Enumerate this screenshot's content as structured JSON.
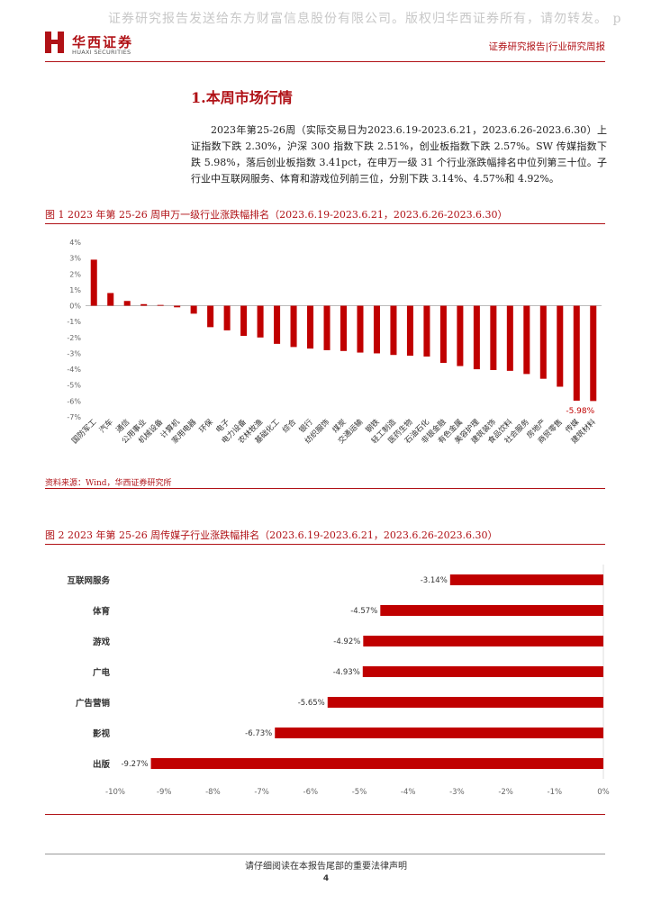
{
  "header": {
    "watermark": "证券研究报告发送给东方财富信息股份有限公司。版权归华西证券所有，请勿转发。 p",
    "logo_cn": "华西证券",
    "logo_en": "HUAXI SECURITIES",
    "report_type": "证券研究报告|行业研究周报"
  },
  "section": {
    "title": "1.本周市场行情",
    "paragraph": "2023年第25-26周（实际交易日为2023.6.19-2023.6.21，2023.6.26-2023.6.30）上证指数下跌 2.30%，沪深 300 指数下跌 2.51%，创业板指数下跌 2.57%。SW 传媒指数下跌 5.98%，落后创业板指数 3.41pct，在申万一级 31 个行业涨跌幅排名中位列第三十位。子行业中互联网服务、体育和游戏位列前三位，分别下跌 3.14%、4.57%和 4.92%。"
  },
  "figure1": {
    "title": "图 1 2023 年第 25-26 周申万一级行业涨跌幅排名（2023.6.19-2023.6.21，2023.6.26-2023.6.30）",
    "source": "资料来源：Wind，华西证券研究所"
  },
  "figure2": {
    "title": "图 2 2023 年第 25-26 周传媒子行业涨跌幅排名（2023.6.19-2023.6.21，2023.6.26-2023.6.30）"
  },
  "chart_data": [
    {
      "type": "bar",
      "title": "2023年第25-26周申万一级行业涨跌幅排名",
      "categories": [
        "国防军工",
        "汽车",
        "通信",
        "公用事业",
        "机械设备",
        "计算机",
        "家用电器",
        "环保",
        "电子",
        "电力设备",
        "农林牧渔",
        "基础化工",
        "综合",
        "银行",
        "纺织服饰",
        "煤炭",
        "交通运输",
        "钢铁",
        "轻工制造",
        "医药生物",
        "石油石化",
        "非银金融",
        "有色金属",
        "美容护理",
        "建筑装饰",
        "食品饮料",
        "社会服务",
        "房地产",
        "商贸零售",
        "传媒",
        "建筑材料"
      ],
      "values": [
        2.9,
        0.8,
        0.3,
        0.1,
        0.05,
        -0.1,
        -0.5,
        -1.35,
        -1.55,
        -1.9,
        -2.0,
        -2.4,
        -2.6,
        -2.7,
        -2.8,
        -2.85,
        -2.95,
        -3.0,
        -3.1,
        -3.15,
        -3.2,
        -3.6,
        -3.8,
        -4.0,
        -4.05,
        -4.1,
        -4.3,
        -4.6,
        -5.1,
        -5.98,
        -6.0
      ],
      "ylim": [
        -7,
        4
      ],
      "yticks": [
        "4%",
        "3%",
        "2%",
        "1%",
        "0%",
        "-1%",
        "-2%",
        "-3%",
        "-4%",
        "-5%",
        "-6%",
        "-7%"
      ],
      "annotation": "-5.98%",
      "color": "#c00000"
    },
    {
      "type": "bar",
      "orientation": "horizontal",
      "title": "2023年第25-26周传媒子行业涨跌幅排名",
      "categories": [
        "互联网服务",
        "体育",
        "游戏",
        "广电",
        "广告营销",
        "影视",
        "出版"
      ],
      "values": [
        -3.14,
        -4.57,
        -4.92,
        -4.93,
        -5.65,
        -6.73,
        -9.27
      ],
      "labels": [
        "-3.14%",
        "-4.57%",
        "-4.92%",
        "-4.93%",
        "-5.65%",
        "-6.73%",
        "-9.27%"
      ],
      "xlim": [
        -10,
        0
      ],
      "xticks": [
        "-10%",
        "-9%",
        "-8%",
        "-7%",
        "-6%",
        "-5%",
        "-4%",
        "-3%",
        "-2%",
        "-1%",
        "0%"
      ],
      "color": "#c00000"
    }
  ],
  "footer": {
    "notice": "请仔细阅读在本报告尾部的重要法律声明",
    "page": "4"
  }
}
